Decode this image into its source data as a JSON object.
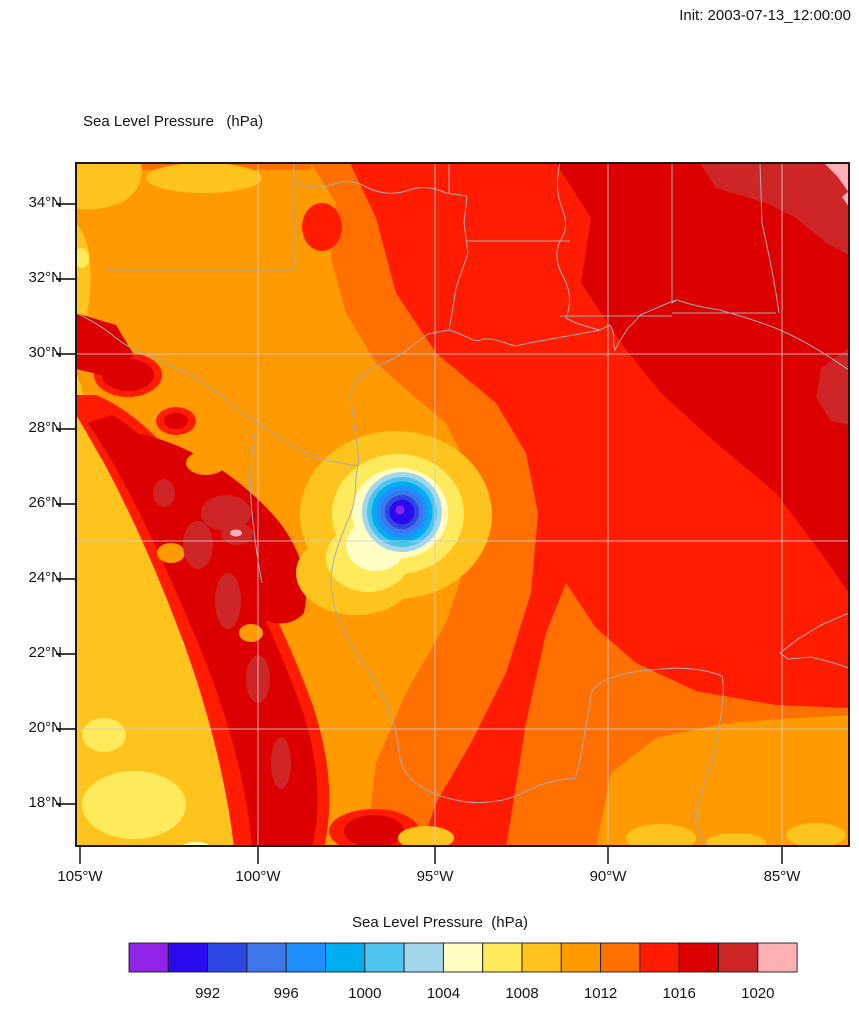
{
  "header": {
    "init_label": "Init: 2003-07-13_12:00:00"
  },
  "plot": {
    "title": "Sea Level Pressure   (hPa)"
  },
  "axes": {
    "lat_ticks": [
      "34°N",
      "32°N",
      "30°N",
      "28°N",
      "26°N",
      "24°N",
      "22°N",
      "20°N",
      "18°N"
    ],
    "lon_ticks": [
      "105°W",
      "100°W",
      "95°W",
      "90°W",
      "85°W"
    ]
  },
  "colorbar": {
    "title": "Sea Level Pressure  (hPa)",
    "tick_labels": [
      "992",
      "996",
      "1000",
      "1004",
      "1008",
      "1012",
      "1016",
      "1020"
    ]
  },
  "chart_data": {
    "type": "heatmap",
    "subtype": "filled-contour-pressure-map",
    "title": "Sea Level Pressure   (hPa)",
    "init_time": "2003-07-13_12:00:00",
    "variable": "Sea Level Pressure",
    "units": "hPa",
    "contour_interval_hpa": 2,
    "colorbar_label_interval_hpa": 4,
    "map_extent": {
      "lon_west": -105.1,
      "lon_east": -83.1,
      "lat_south": 16.9,
      "lat_north": 35.1
    },
    "graticule_deg": 5,
    "x_tick_lons": [
      -105,
      -100,
      -95,
      -90,
      -85
    ],
    "y_tick_lats": [
      34,
      32,
      30,
      28,
      26,
      24,
      22,
      20,
      18
    ],
    "storm": {
      "description": "tropical cyclone low-pressure center (concentric closed contours)",
      "center_lon": -95.9,
      "center_lat": 25.8,
      "min_pressure_hpa_estimate": 988
    },
    "field_notes": [
      "high pressure (1016-1022 hPa) over the northeast / southeastern US",
      "broad 1010-1016 hPa field over Texas and the Gulf of Mexico",
      "noisy low SLP bands (1004-1010) with terrain artifacts over the Sierra Madre in Mexico"
    ],
    "levels": [
      {
        "range": "<990",
        "color": "#9223E8"
      },
      {
        "range": "990-992",
        "color": "#2A0BF0"
      },
      {
        "range": "992-994",
        "color": "#2C47E3"
      },
      {
        "range": "994-996",
        "color": "#3C76E8"
      },
      {
        "range": "996-998",
        "color": "#1E8FFB"
      },
      {
        "range": "998-1000",
        "color": "#00AEF0"
      },
      {
        "range": "1000-1002",
        "color": "#4FC4EF"
      },
      {
        "range": "1002-1004",
        "color": "#A3D6EB"
      },
      {
        "range": "1004-1006",
        "color": "#FFFFC3"
      },
      {
        "range": "1006-1008",
        "color": "#FFEA5C"
      },
      {
        "range": "1008-1010",
        "color": "#FFC31E"
      },
      {
        "range": "1010-1012",
        "color": "#FF9A00"
      },
      {
        "range": "1012-1014",
        "color": "#FF7000"
      },
      {
        "range": "1014-1016",
        "color": "#FF1C00"
      },
      {
        "range": "1016-1018",
        "color": "#DC0000"
      },
      {
        "range": "1018-1020",
        "color": "#CE2626"
      },
      {
        "range": ">1020",
        "color": "#FFB0B4"
      }
    ],
    "line_colors": {
      "graticule": "#C9CED3",
      "coast_borders": "#A6ABAF",
      "frame": "#1A1A1A"
    }
  }
}
